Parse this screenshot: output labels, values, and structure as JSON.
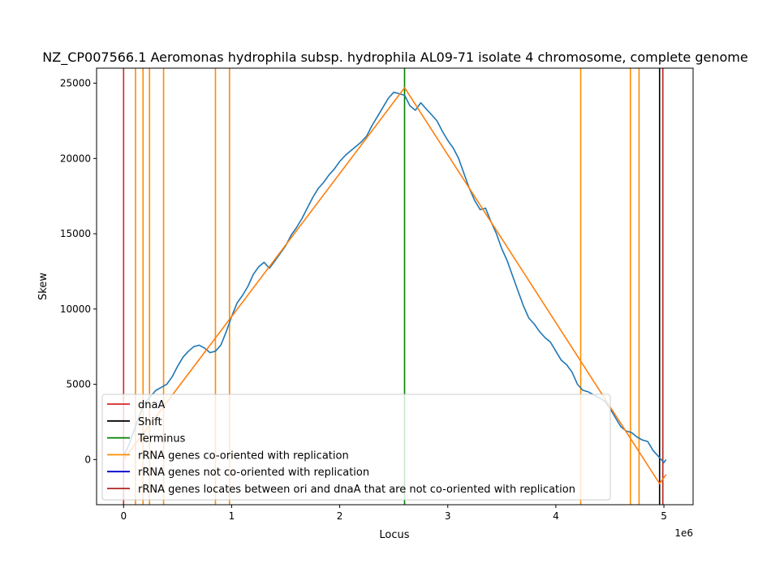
{
  "chart_data": {
    "type": "line",
    "title": "NZ_CP007566.1 Aeromonas hydrophila subsp. hydrophila AL09-71 isolate 4 chromosome, complete genome",
    "xlabel": "Locus",
    "ylabel": "Skew",
    "x_offset_label": "1e6",
    "xlim": [
      -0.25,
      5.27
    ],
    "ylim": [
      -3000,
      26000
    ],
    "x_ticks": [
      0,
      1,
      2,
      3,
      4,
      5
    ],
    "x_tick_labels": [
      "0",
      "1",
      "2",
      "3",
      "4",
      "5"
    ],
    "y_ticks": [
      0,
      5000,
      10000,
      15000,
      20000,
      25000
    ],
    "y_tick_labels": [
      "0",
      "5000",
      "10000",
      "15000",
      "20000",
      "25000"
    ],
    "grid": false,
    "legend_position": "lower-left",
    "series": [
      {
        "name": "",
        "color": "#1f77b4",
        "x": [
          0.0,
          0.05,
          0.1,
          0.15,
          0.2,
          0.25,
          0.3,
          0.35,
          0.4,
          0.45,
          0.5,
          0.55,
          0.6,
          0.65,
          0.7,
          0.75,
          0.8,
          0.85,
          0.9,
          0.95,
          1.0,
          1.05,
          1.1,
          1.15,
          1.2,
          1.25,
          1.3,
          1.35,
          1.4,
          1.45,
          1.5,
          1.55,
          1.6,
          1.65,
          1.7,
          1.75,
          1.8,
          1.85,
          1.9,
          1.95,
          2.0,
          2.05,
          2.1,
          2.15,
          2.2,
          2.25,
          2.3,
          2.35,
          2.4,
          2.45,
          2.5,
          2.55,
          2.6,
          2.65,
          2.7,
          2.75,
          2.8,
          2.85,
          2.9,
          2.95,
          3.0,
          3.05,
          3.1,
          3.15,
          3.2,
          3.25,
          3.3,
          3.35,
          3.4,
          3.45,
          3.5,
          3.55,
          3.6,
          3.65,
          3.7,
          3.75,
          3.8,
          3.85,
          3.9,
          3.95,
          4.0,
          4.05,
          4.1,
          4.15,
          4.2,
          4.25,
          4.3,
          4.35,
          4.4,
          4.45,
          4.5,
          4.55,
          4.6,
          4.65,
          4.7,
          4.75,
          4.8,
          4.85,
          4.9,
          4.95,
          5.0,
          5.02
        ],
        "y": [
          200,
          1000,
          2000,
          3000,
          3800,
          4200,
          4600,
          4800,
          5000,
          5500,
          6200,
          6800,
          7200,
          7500,
          7600,
          7400,
          7100,
          7200,
          7600,
          8500,
          9500,
          10400,
          10900,
          11500,
          12300,
          12800,
          13100,
          12700,
          13200,
          13700,
          14200,
          14900,
          15400,
          16000,
          16700,
          17400,
          18000,
          18400,
          18900,
          19300,
          19800,
          20200,
          20500,
          20800,
          21100,
          21500,
          22200,
          22800,
          23400,
          24000,
          24400,
          24300,
          24200,
          23500,
          23200,
          23700,
          23300,
          22900,
          22500,
          21800,
          21200,
          20700,
          20000,
          19000,
          18000,
          17200,
          16600,
          16700,
          15800,
          15000,
          14000,
          13200,
          12200,
          11200,
          10200,
          9400,
          9000,
          8500,
          8100,
          7800,
          7200,
          6600,
          6300,
          5800,
          5000,
          4600,
          4500,
          4300,
          4100,
          3900,
          3400,
          2800,
          2200,
          1900,
          1800,
          1500,
          1300,
          1200,
          600,
          200,
          -200,
          0
        ]
      },
      {
        "name": "",
        "color": "#ff7f0e",
        "x": [
          0.0,
          2.6,
          4.96,
          5.02
        ],
        "y": [
          0,
          24700,
          -1600,
          -1000
        ]
      }
    ],
    "vlines": [
      {
        "legend": "dnaA",
        "color": "#d62728",
        "x": [
          0.0
        ]
      },
      {
        "legend": "Shift",
        "color": "#000000",
        "x": [
          4.96
        ]
      },
      {
        "legend": "Terminus",
        "color": "#008000",
        "x": [
          2.6
        ]
      },
      {
        "legend": "rRNA genes co-oriented with replication",
        "color": "#ff8c00",
        "x": [
          0.11,
          0.18,
          0.24,
          0.37,
          0.85,
          0.98,
          4.23,
          4.69,
          4.77
        ]
      },
      {
        "legend": "rRNA genes not co-oriented with replication",
        "color": "#0000cd",
        "x": []
      },
      {
        "legend": "rRNA genes locates between ori and dnaA that are not co-oriented with replication",
        "color": "#b22222",
        "x": [
          4.99
        ]
      }
    ]
  }
}
